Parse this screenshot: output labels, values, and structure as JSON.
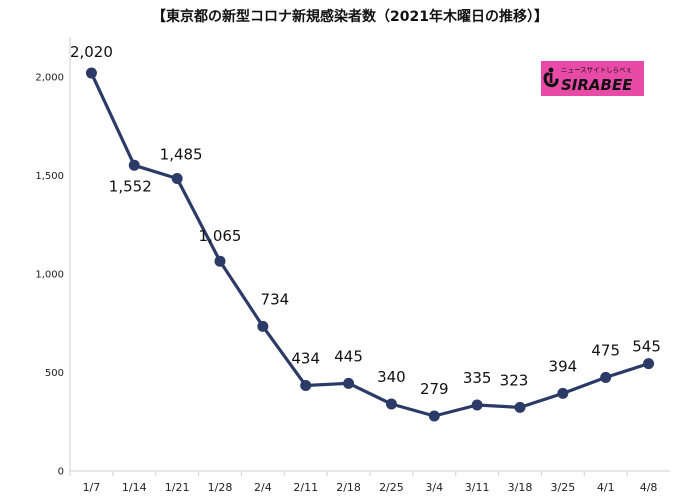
{
  "title": "【東京都の新型コロナ新規感染者数（2021年木曜日の推移）】",
  "logo": {
    "brand": "SIRABEE",
    "tagline": "ニュースサイトしらべぇ",
    "background_color": "#e84aa8"
  },
  "colors": {
    "line": "#2b3a67",
    "marker": "#2b3a67"
  },
  "chart_data": {
    "type": "line",
    "title": "【東京都の新型コロナ新規感染者数（2021年木曜日の推移）】",
    "xlabel": "",
    "ylabel": "",
    "ylim": [
      0,
      2000
    ],
    "grid": false,
    "legend": "none",
    "yticks": [
      0,
      500,
      1000,
      1500,
      2000
    ],
    "ytick_labels": [
      "0",
      "500",
      "1,000",
      "1,500",
      "2,000"
    ],
    "categories": [
      "1/7",
      "1/14",
      "1/21",
      "1/28",
      "2/4",
      "2/11",
      "2/18",
      "2/25",
      "3/4",
      "3/11",
      "3/18",
      "3/25",
      "4/1",
      "4/8"
    ],
    "series": [
      {
        "values": [
          2020,
          1552,
          1485,
          1065,
          734,
          434,
          445,
          340,
          279,
          335,
          323,
          394,
          475,
          545
        ],
        "value_labels": [
          "2,020",
          "1,552",
          "1,485",
          "1,065",
          "734",
          "434",
          "445",
          "340",
          "279",
          "335",
          "323",
          "394",
          "475",
          "545"
        ]
      }
    ]
  }
}
